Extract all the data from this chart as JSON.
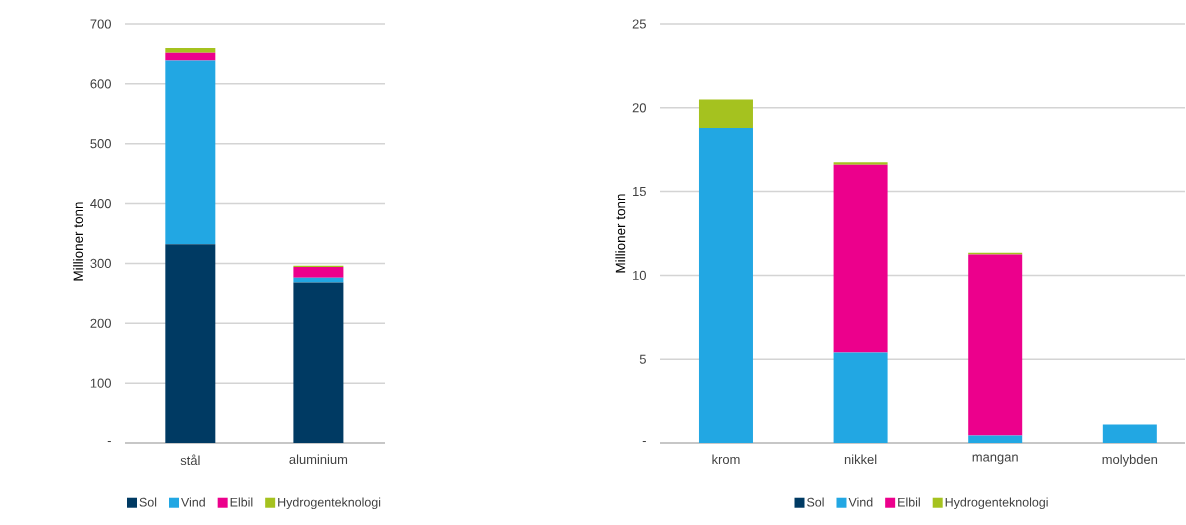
{
  "chart_data": [
    {
      "type": "bar",
      "stacked": true,
      "ylabel": "Millioner tonn",
      "categories": [
        "stål",
        "aluminium"
      ],
      "ylim": [
        0,
        700
      ],
      "yticks": [
        {
          "value": 0,
          "label": "-"
        },
        100,
        200,
        300,
        400,
        500,
        600,
        700
      ],
      "grid": "y",
      "legend": "bottom",
      "series": [
        {
          "name": "Sol",
          "color": "#003a63",
          "values": [
            332,
            268
          ]
        },
        {
          "name": "Vind",
          "color": "#22a7e3",
          "values": [
            307,
            8
          ]
        },
        {
          "name": "Elbil",
          "color": "#ec008c",
          "values": [
            13,
            18
          ]
        },
        {
          "name": "Hydrogenteknologi",
          "color": "#a5c21f",
          "values": [
            8,
            2
          ]
        }
      ]
    },
    {
      "type": "bar",
      "stacked": true,
      "ylabel": "Millioner tonn",
      "categories": [
        "krom",
        "nikkel",
        "mangan",
        "molybden"
      ],
      "ylim": [
        0,
        25
      ],
      "yticks": [
        {
          "value": 0,
          "label": "-"
        },
        5,
        10,
        15,
        20,
        25
      ],
      "grid": "y",
      "legend": "bottom",
      "series": [
        {
          "name": "Sol",
          "color": "#003a63",
          "values": [
            0,
            0,
            0,
            0
          ]
        },
        {
          "name": "Vind",
          "color": "#22a7e3",
          "values": [
            18.8,
            5.4,
            0.45,
            1.1
          ]
        },
        {
          "name": "Elbil",
          "color": "#ec008c",
          "values": [
            0,
            11.2,
            10.8,
            0
          ]
        },
        {
          "name": "Hydrogenteknologi",
          "color": "#a5c21f",
          "values": [
            1.7,
            0.15,
            0.1,
            0
          ]
        }
      ]
    }
  ]
}
